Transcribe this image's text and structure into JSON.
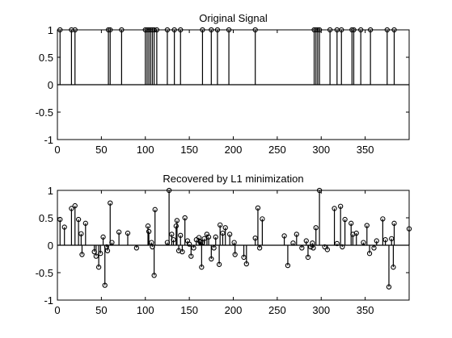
{
  "chart_data": [
    {
      "type": "stem",
      "title": "Original Signal",
      "xlabel": "",
      "ylabel": "",
      "xlim": [
        0,
        400
      ],
      "ylim": [
        -1,
        1
      ],
      "xticks": [
        0,
        50,
        100,
        150,
        200,
        250,
        300,
        350
      ],
      "yticks": [
        1,
        0.5,
        0,
        -0.5,
        -1
      ],
      "xtick_labels": [
        "0",
        "50",
        "100",
        "150",
        "200",
        "250",
        "300",
        "350"
      ],
      "ytick_labels": [
        "1",
        "0.5",
        "0",
        "-0.5",
        "-1"
      ],
      "grid": false,
      "points": [
        [
          3,
          1
        ],
        [
          16,
          1
        ],
        [
          20,
          1
        ],
        [
          58,
          1
        ],
        [
          60,
          1
        ],
        [
          73,
          1
        ],
        [
          100,
          1
        ],
        [
          102,
          1
        ],
        [
          104,
          1
        ],
        [
          106,
          1
        ],
        [
          108,
          1
        ],
        [
          110,
          1
        ],
        [
          113,
          1
        ],
        [
          125,
          1
        ],
        [
          133,
          1
        ],
        [
          140,
          1
        ],
        [
          165,
          1
        ],
        [
          175,
          1
        ],
        [
          182,
          1
        ],
        [
          195,
          1
        ],
        [
          225,
          1
        ],
        [
          292,
          1
        ],
        [
          294,
          1
        ],
        [
          296,
          1
        ],
        [
          298,
          1
        ],
        [
          310,
          1
        ],
        [
          318,
          1
        ],
        [
          323,
          1
        ],
        [
          335,
          1
        ],
        [
          337,
          1
        ],
        [
          345,
          1
        ],
        [
          356,
          1
        ],
        [
          375,
          1
        ],
        [
          383,
          1
        ]
      ]
    },
    {
      "type": "stem",
      "title": "Recovered by L1 minimization",
      "xlabel": "",
      "ylabel": "",
      "xlim": [
        0,
        400
      ],
      "ylim": [
        -1,
        1
      ],
      "xticks": [
        0,
        50,
        100,
        150,
        200,
        250,
        300,
        350
      ],
      "yticks": [
        1,
        0.5,
        0,
        -0.5,
        -1
      ],
      "xtick_labels": [
        "0",
        "50",
        "100",
        "150",
        "200",
        "250",
        "300",
        "350"
      ],
      "ytick_labels": [
        "1",
        "0.5",
        "0",
        "-0.5",
        "-1"
      ],
      "grid": false,
      "points": [
        [
          3,
          0.47
        ],
        [
          8,
          0.33
        ],
        [
          16,
          0.67
        ],
        [
          20,
          0.72
        ],
        [
          24,
          0.47
        ],
        [
          27,
          0.21
        ],
        [
          28,
          -0.17
        ],
        [
          32,
          0.4
        ],
        [
          42,
          -0.12
        ],
        [
          44,
          -0.2
        ],
        [
          47,
          -0.4
        ],
        [
          49,
          -0.15
        ],
        [
          52,
          0.15
        ],
        [
          54,
          -0.73
        ],
        [
          56,
          -0.03
        ],
        [
          57,
          -0.1
        ],
        [
          60,
          0.77
        ],
        [
          62,
          0.05
        ],
        [
          70,
          0.24
        ],
        [
          80,
          0.22
        ],
        [
          90,
          -0.05
        ],
        [
          103,
          0.35
        ],
        [
          104,
          0.25
        ],
        [
          107,
          0.05
        ],
        [
          108,
          -0.03
        ],
        [
          110,
          -0.55
        ],
        [
          111,
          0.65
        ],
        [
          125,
          0.05
        ],
        [
          127,
          1.0
        ],
        [
          130,
          0.2
        ],
        [
          132,
          0.1
        ],
        [
          135,
          0.35
        ],
        [
          136,
          0.45
        ],
        [
          138,
          -0.1
        ],
        [
          140,
          0.18
        ],
        [
          142,
          -0.12
        ],
        [
          145,
          0.5
        ],
        [
          148,
          0.08
        ],
        [
          150,
          0.02
        ],
        [
          152,
          -0.2
        ],
        [
          155,
          -0.05
        ],
        [
          158,
          0.1
        ],
        [
          161,
          0.14
        ],
        [
          162,
          0.07
        ],
        [
          163,
          0.06
        ],
        [
          164,
          -0.4
        ],
        [
          165,
          0.05
        ],
        [
          167,
          0.12
        ],
        [
          170,
          0.2
        ],
        [
          172,
          0.15
        ],
        [
          175,
          -0.25
        ],
        [
          178,
          -0.05
        ],
        [
          180,
          0.15
        ],
        [
          184,
          -0.35
        ],
        [
          185,
          0.37
        ],
        [
          188,
          0.22
        ],
        [
          191,
          0.32
        ],
        [
          196,
          0.2
        ],
        [
          201,
          0.05
        ],
        [
          202,
          -0.17
        ],
        [
          212,
          -0.22
        ],
        [
          215,
          -0.34
        ],
        [
          225,
          0.13
        ],
        [
          228,
          0.68
        ],
        [
          230,
          -0.05
        ],
        [
          233,
          0.48
        ],
        [
          258,
          0.17
        ],
        [
          262,
          -0.37
        ],
        [
          268,
          0.04
        ],
        [
          272,
          0.2
        ],
        [
          278,
          -0.05
        ],
        [
          283,
          0.08
        ],
        [
          285,
          -0.22
        ],
        [
          288,
          -0.03
        ],
        [
          290,
          0.04
        ],
        [
          291,
          -0.05
        ],
        [
          294,
          0.32
        ],
        [
          298,
          1.0
        ],
        [
          304,
          -0.03
        ],
        [
          307,
          -0.08
        ],
        [
          315,
          0.67
        ],
        [
          318,
          0.03
        ],
        [
          322,
          0.71
        ],
        [
          324,
          -0.03
        ],
        [
          327,
          0.47
        ],
        [
          334,
          0.4
        ],
        [
          336,
          0.2
        ],
        [
          340,
          0.22
        ],
        [
          348,
          0.05
        ],
        [
          352,
          0.36
        ],
        [
          355,
          -0.15
        ],
        [
          360,
          -0.05
        ],
        [
          363,
          0.08
        ],
        [
          370,
          0.48
        ],
        [
          373,
          0.1
        ],
        [
          377,
          -0.76
        ],
        [
          380,
          0.12
        ],
        [
          382,
          -0.4
        ],
        [
          383,
          0.4
        ],
        [
          400,
          0.3
        ]
      ]
    }
  ]
}
